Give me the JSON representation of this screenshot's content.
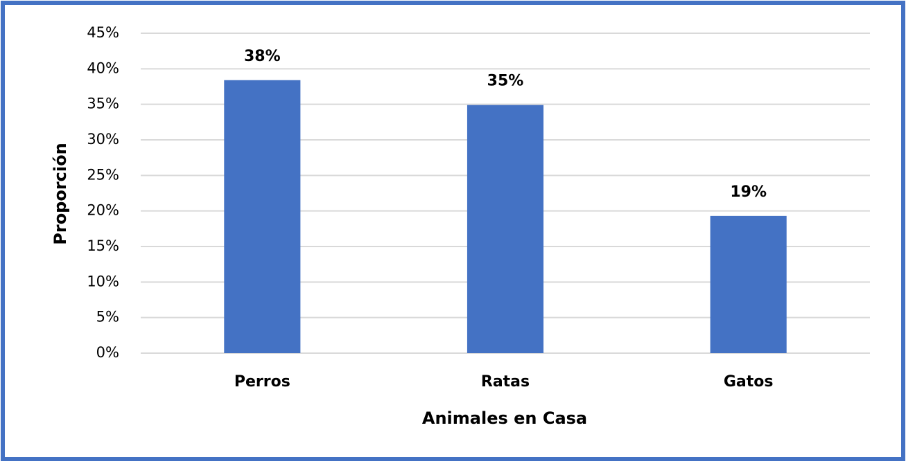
{
  "chart_data": {
    "type": "bar",
    "x_label": "Animales en Casa",
    "y_label": "Proporción",
    "categories": [
      "Perros",
      "Ratas",
      "Gatos"
    ],
    "values": [
      38.4,
      34.9,
      19.3
    ],
    "value_labels": [
      "38%",
      "35%",
      "19%"
    ],
    "color": "#4472c4",
    "ylim": [
      0,
      45
    ],
    "yticks": [
      {
        "value": 0,
        "label": "0%"
      },
      {
        "value": 5,
        "label": "5%"
      },
      {
        "value": 10,
        "label": "10%"
      },
      {
        "value": 15,
        "label": "15%"
      },
      {
        "value": 20,
        "label": "20%"
      },
      {
        "value": 25,
        "label": "25%"
      },
      {
        "value": 30,
        "label": "30%"
      },
      {
        "value": 35,
        "label": "35%"
      },
      {
        "value": 40,
        "label": "40%"
      },
      {
        "value": 45,
        "label": "45%"
      }
    ],
    "grid": true
  }
}
